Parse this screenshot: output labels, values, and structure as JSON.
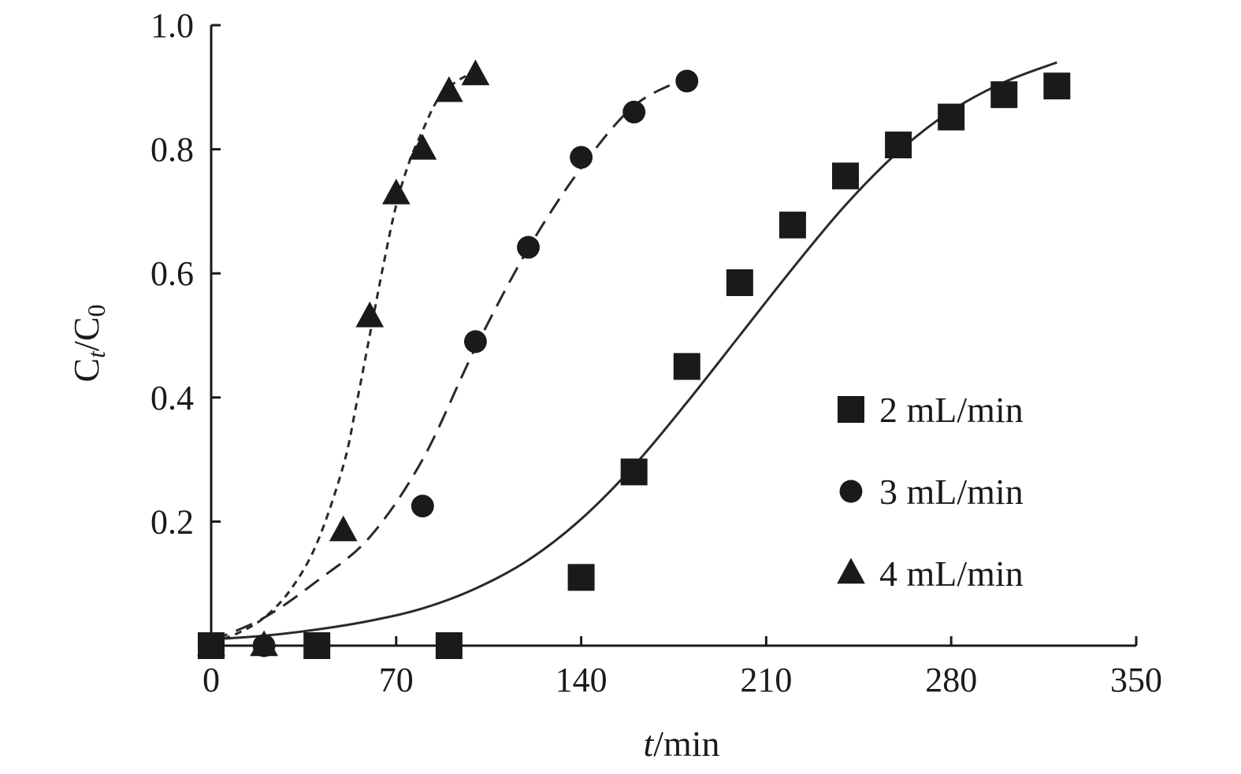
{
  "chart_data": {
    "type": "scatter",
    "title": "",
    "xlabel_italic": "t",
    "xlabel_rest": "/min",
    "ylabel_main": "C",
    "ylabel_sub1": "t",
    "ylabel_mid": "/C",
    "ylabel_sub2": "0",
    "xlim": [
      0,
      350
    ],
    "ylim": [
      0,
      1.0
    ],
    "x_ticks": [
      0,
      70,
      140,
      210,
      280,
      350
    ],
    "x_tick_labels": [
      "0",
      "70",
      "140",
      "210",
      "280",
      "350"
    ],
    "y_ticks": [
      0.2,
      0.4,
      0.6,
      0.8,
      1.0
    ],
    "y_tick_labels": [
      "0.2",
      "0.4",
      "0.6",
      "0.8",
      "1.0"
    ],
    "grid": false,
    "legend_position": "right-middle",
    "series": [
      {
        "name": "2 mL/min",
        "marker": "square",
        "line_style": "solid",
        "x": [
          0,
          40,
          90,
          140,
          160,
          180,
          200,
          220,
          240,
          260,
          280,
          300,
          320
        ],
        "y": [
          0.0,
          0.0,
          0.0,
          0.11,
          0.28,
          0.45,
          0.585,
          0.678,
          0.757,
          0.807,
          0.852,
          0.888,
          0.902
        ],
        "fit_x": [
          0,
          20,
          40,
          60,
          80,
          100,
          120,
          140,
          160,
          180,
          200,
          220,
          240,
          260,
          280,
          300,
          320
        ],
        "fit_y": [
          0.01,
          0.016,
          0.026,
          0.04,
          0.06,
          0.092,
          0.138,
          0.204,
          0.29,
          0.392,
          0.5,
          0.608,
          0.71,
          0.796,
          0.862,
          0.908,
          0.94
        ]
      },
      {
        "name": "3 mL/min",
        "marker": "circle",
        "line_style": "dashed",
        "x": [
          0,
          20,
          80,
          100,
          120,
          140,
          160,
          180
        ],
        "y": [
          0.0,
          0.0,
          0.225,
          0.49,
          0.642,
          0.787,
          0.86,
          0.91
        ],
        "fit_x": [
          0,
          20,
          40,
          60,
          80,
          100,
          120,
          140,
          160,
          180
        ],
        "fit_y": [
          0.008,
          0.045,
          0.104,
          0.175,
          0.3,
          0.48,
          0.64,
          0.77,
          0.87,
          0.915
        ]
      },
      {
        "name": "4 mL/min",
        "marker": "triangle",
        "line_style": "dotted",
        "x": [
          0,
          20,
          50,
          60,
          70,
          80,
          90,
          100
        ],
        "y": [
          0.0,
          0.0,
          0.185,
          0.53,
          0.728,
          0.8,
          0.893,
          0.92
        ],
        "fit_x": [
          0,
          10,
          20,
          30,
          40,
          50,
          55,
          60,
          65,
          70,
          75,
          80,
          85,
          90,
          95,
          100
        ],
        "fit_y": [
          0.005,
          0.02,
          0.045,
          0.09,
          0.165,
          0.29,
          0.39,
          0.5,
          0.61,
          0.71,
          0.78,
          0.83,
          0.875,
          0.9,
          0.915,
          0.925
        ]
      }
    ]
  }
}
